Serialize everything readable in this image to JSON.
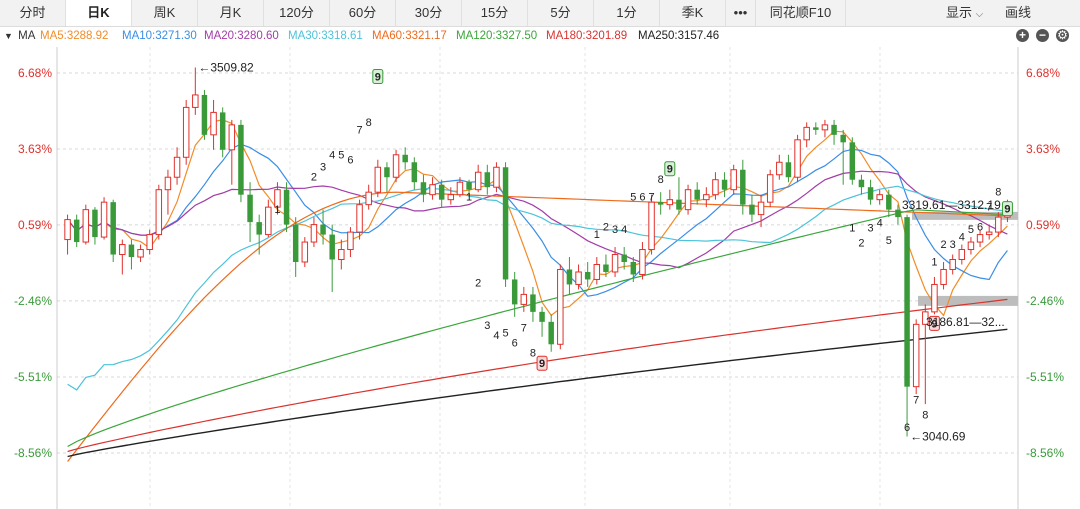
{
  "tabs": [
    {
      "label": "分时",
      "active": false
    },
    {
      "label": "日K",
      "active": true
    },
    {
      "label": "周K",
      "active": false
    },
    {
      "label": "月K",
      "active": false
    },
    {
      "label": "120分",
      "active": false
    },
    {
      "label": "60分",
      "active": false
    },
    {
      "label": "30分",
      "active": false
    },
    {
      "label": "15分",
      "active": false
    },
    {
      "label": "5分",
      "active": false
    },
    {
      "label": "1分",
      "active": false
    },
    {
      "label": "季K",
      "active": false
    },
    {
      "label": "•••",
      "active": false
    },
    {
      "label": "同花顺F10",
      "active": false
    }
  ],
  "toolbar": {
    "display_label": "显示",
    "draw_label": "画线"
  },
  "ma_bar": {
    "toggle": "MA",
    "items": [
      {
        "label": "MA5:3288.92",
        "color": "#f28c28"
      },
      {
        "label": "MA10:3271.30",
        "color": "#3a8ee6"
      },
      {
        "label": "MA20:3280.60",
        "color": "#a23ca8"
      },
      {
        "label": "MA30:3318.61",
        "color": "#4cc3d9"
      },
      {
        "label": "MA60:3321.17",
        "color": "#ee6a1c"
      },
      {
        "label": "MA120:3327.50",
        "color": "#3aa63a"
      },
      {
        "label": "MA180:3201.89",
        "color": "#d9332e"
      },
      {
        "label": "MA250:3157.46",
        "color": "#222222"
      }
    ]
  },
  "colors": {
    "up": "#e0302b",
    "down": "#3a9a3a",
    "grid": "#d8d8d8"
  },
  "chart_data": {
    "type": "candlestick",
    "y_axis_percent_ticks": [
      "6.68%",
      "3.63%",
      "0.59%",
      "-2.46%",
      "-5.51%",
      "-8.56%"
    ],
    "y_pct_range": [
      -9.4,
      8.0
    ],
    "annotations": {
      "high": "←3509.82",
      "low": "←3040.69",
      "resistance": "3319.61—3312.19",
      "support": "3186.81—32..."
    },
    "count_labels": [
      {
        "i": 23,
        "v": 0.9,
        "t": "1",
        "pos": "above"
      },
      {
        "i": 27,
        "v": 2.2,
        "t": "2",
        "pos": "above"
      },
      {
        "i": 28,
        "v": 2.6,
        "t": "3",
        "pos": "above"
      },
      {
        "i": 29,
        "v": 3.1,
        "t": "4",
        "pos": "above"
      },
      {
        "i": 30,
        "v": 3.1,
        "t": "5",
        "pos": "above"
      },
      {
        "i": 31,
        "v": 2.9,
        "t": "6",
        "pos": "above"
      },
      {
        "i": 32,
        "v": 4.1,
        "t": "7",
        "pos": "above"
      },
      {
        "i": 33,
        "v": 4.4,
        "t": "8",
        "pos": "above"
      },
      {
        "i": 44,
        "v": 1.4,
        "t": "1",
        "pos": "above"
      },
      {
        "i": 45,
        "v": -1.4,
        "t": "2",
        "pos": "below"
      },
      {
        "i": 46,
        "v": -3.1,
        "t": "3",
        "pos": "below"
      },
      {
        "i": 47,
        "v": -3.5,
        "t": "4",
        "pos": "below"
      },
      {
        "i": 48,
        "v": -3.4,
        "t": "5",
        "pos": "below"
      },
      {
        "i": 49,
        "v": -3.8,
        "t": "6",
        "pos": "below"
      },
      {
        "i": 50,
        "v": -3.2,
        "t": "7",
        "pos": "below"
      },
      {
        "i": 51,
        "v": -4.2,
        "t": "8",
        "pos": "below"
      },
      {
        "i": 58,
        "v": -0.1,
        "t": "1",
        "pos": "above"
      },
      {
        "i": 59,
        "v": 0.2,
        "t": "2",
        "pos": "above"
      },
      {
        "i": 60,
        "v": 0.1,
        "t": "3",
        "pos": "above"
      },
      {
        "i": 61,
        "v": 0.1,
        "t": "4",
        "pos": "above"
      },
      {
        "i": 62,
        "v": 1.4,
        "t": "5",
        "pos": "above"
      },
      {
        "i": 63,
        "v": 1.4,
        "t": "6",
        "pos": "above"
      },
      {
        "i": 64,
        "v": 1.4,
        "t": "7",
        "pos": "above"
      },
      {
        "i": 65,
        "v": 2.1,
        "t": "8",
        "pos": "above"
      },
      {
        "i": 86,
        "v": 0.8,
        "t": "1",
        "pos": "below"
      },
      {
        "i": 87,
        "v": 0.2,
        "t": "2",
        "pos": "below"
      },
      {
        "i": 88,
        "v": 0.8,
        "t": "3",
        "pos": "below"
      },
      {
        "i": 89,
        "v": 1.0,
        "t": "4",
        "pos": "below"
      },
      {
        "i": 90,
        "v": 0.3,
        "t": "5",
        "pos": "below"
      },
      {
        "i": 92,
        "v": -7.2,
        "t": "6",
        "pos": "below"
      },
      {
        "i": 93,
        "v": -6.1,
        "t": "7",
        "pos": "below"
      },
      {
        "i": 94,
        "v": -6.7,
        "t": "8",
        "pos": "below"
      },
      {
        "i": 95,
        "v": -1.2,
        "t": "1",
        "pos": "above"
      },
      {
        "i": 96,
        "v": -0.5,
        "t": "2",
        "pos": "above"
      },
      {
        "i": 97,
        "v": -0.5,
        "t": "3",
        "pos": "above"
      },
      {
        "i": 98,
        "v": -0.2,
        "t": "4",
        "pos": "above"
      },
      {
        "i": 99,
        "v": 0.1,
        "t": "5",
        "pos": "above"
      },
      {
        "i": 100,
        "v": 0.2,
        "t": "6",
        "pos": "above"
      },
      {
        "i": 101,
        "v": 1.0,
        "t": "7",
        "pos": "above"
      },
      {
        "i": 102,
        "v": 1.6,
        "t": "8",
        "pos": "above"
      }
    ],
    "nine_marks": [
      {
        "i": 34,
        "v": 6.5,
        "t": "9",
        "kind": "top"
      },
      {
        "i": 52,
        "v": -5.0,
        "t": "9",
        "kind": "bottom"
      },
      {
        "i": 66,
        "v": 2.8,
        "t": "9",
        "kind": "top"
      },
      {
        "i": 95,
        "v": -3.4,
        "t": "9",
        "kind": "bottom"
      },
      {
        "i": 103,
        "v": 1.2,
        "t": "9",
        "kind": "top"
      }
    ],
    "candles": [
      [
        0.0,
        0.8,
        1.0,
        -0.6
      ],
      [
        0.8,
        -0.1,
        1.0,
        -0.3
      ],
      [
        -0.1,
        1.2,
        1.4,
        -0.2
      ],
      [
        1.2,
        0.1,
        1.3,
        -0.2
      ],
      [
        0.1,
        1.5,
        1.7,
        0.0
      ],
      [
        1.5,
        -0.6,
        1.6,
        -0.9
      ],
      [
        -0.6,
        -0.2,
        0.0,
        -1.4
      ],
      [
        -0.2,
        -0.7,
        0.0,
        -1.2
      ],
      [
        -0.7,
        -0.4,
        -0.2,
        -0.9
      ],
      [
        -0.4,
        0.2,
        0.4,
        -0.6
      ],
      [
        0.2,
        2.0,
        2.2,
        0.0
      ],
      [
        2.0,
        2.5,
        2.8,
        1.0
      ],
      [
        2.5,
        3.3,
        3.7,
        2.2
      ],
      [
        3.3,
        5.3,
        5.6,
        3.0
      ],
      [
        5.3,
        5.8,
        6.9,
        5.0
      ],
      [
        5.8,
        4.2,
        6.0,
        4.0
      ],
      [
        4.2,
        5.1,
        5.6,
        3.6
      ],
      [
        5.1,
        3.6,
        5.3,
        3.3
      ],
      [
        3.6,
        4.6,
        4.8,
        2.2
      ],
      [
        4.6,
        1.8,
        4.8,
        1.5
      ],
      [
        1.8,
        0.7,
        2.3,
        -0.1
      ],
      [
        0.7,
        0.2,
        1.0,
        -0.6
      ],
      [
        0.2,
        1.3,
        1.6,
        0.1
      ],
      [
        1.3,
        2.0,
        2.3,
        1.0
      ],
      [
        2.0,
        0.6,
        2.3,
        0.3
      ],
      [
        0.6,
        -0.9,
        0.9,
        -1.5
      ],
      [
        -0.9,
        -0.1,
        0.1,
        -1.1
      ],
      [
        -0.1,
        0.6,
        0.9,
        -0.3
      ],
      [
        0.6,
        0.2,
        1.2,
        -0.2
      ],
      [
        0.2,
        -0.8,
        0.6,
        -2.1
      ],
      [
        -0.8,
        -0.4,
        0.0,
        -1.2
      ],
      [
        -0.4,
        0.3,
        0.5,
        -0.7
      ],
      [
        0.3,
        1.4,
        1.6,
        0.0
      ],
      [
        1.4,
        1.9,
        2.2,
        1.2
      ],
      [
        1.9,
        2.9,
        3.2,
        1.7
      ],
      [
        2.9,
        2.5,
        3.1,
        1.9
      ],
      [
        2.5,
        3.4,
        3.6,
        2.3
      ],
      [
        3.4,
        3.1,
        3.7,
        2.8
      ],
      [
        3.1,
        2.3,
        3.3,
        2.0
      ],
      [
        2.3,
        1.8,
        2.6,
        1.5
      ],
      [
        1.8,
        2.2,
        2.5,
        1.6
      ],
      [
        2.2,
        1.6,
        2.4,
        1.3
      ],
      [
        1.6,
        1.8,
        2.1,
        1.4
      ],
      [
        1.8,
        2.3,
        2.5,
        1.7
      ],
      [
        2.3,
        2.0,
        2.4,
        1.8
      ],
      [
        2.0,
        2.7,
        3.0,
        1.9
      ],
      [
        2.7,
        2.1,
        3.0,
        1.8
      ],
      [
        2.1,
        2.9,
        3.1,
        1.9
      ],
      [
        2.9,
        -1.6,
        3.1,
        -1.9
      ],
      [
        -1.6,
        -2.6,
        -1.3,
        -3.1
      ],
      [
        -2.6,
        -2.2,
        -1.9,
        -2.9
      ],
      [
        -2.2,
        -2.9,
        -1.9,
        -3.3
      ],
      [
        -2.9,
        -3.3,
        -2.7,
        -3.9
      ],
      [
        -3.3,
        -4.2,
        -3.0,
        -4.5
      ],
      [
        -4.2,
        -1.2,
        -1.0,
        -4.4
      ],
      [
        -1.2,
        -1.8,
        -0.7,
        -2.2
      ],
      [
        -1.8,
        -1.3,
        -1.0,
        -2.0
      ],
      [
        -1.3,
        -1.6,
        -0.9,
        -1.9
      ],
      [
        -1.6,
        -1.0,
        -0.7,
        -1.8
      ],
      [
        -1.0,
        -1.3,
        -0.6,
        -1.5
      ],
      [
        -1.3,
        -0.6,
        -0.3,
        -1.5
      ],
      [
        -0.6,
        -0.9,
        -0.3,
        -1.2
      ],
      [
        -0.9,
        -1.4,
        -0.7,
        -1.7
      ],
      [
        -1.4,
        -0.4,
        -0.1,
        -1.6
      ],
      [
        -0.4,
        1.5,
        1.8,
        -0.6
      ],
      [
        1.5,
        1.4,
        1.9,
        1.0
      ],
      [
        1.4,
        1.6,
        2.0,
        1.2
      ],
      [
        1.6,
        1.2,
        2.5,
        1.0
      ],
      [
        1.2,
        2.0,
        2.2,
        1.0
      ],
      [
        2.0,
        1.6,
        2.3,
        1.4
      ],
      [
        1.6,
        1.8,
        2.1,
        1.3
      ],
      [
        1.8,
        2.4,
        2.7,
        1.6
      ],
      [
        2.4,
        2.0,
        2.7,
        1.7
      ],
      [
        2.0,
        2.8,
        3.0,
        1.8
      ],
      [
        2.8,
        1.4,
        3.2,
        1.0
      ],
      [
        1.4,
        1.0,
        1.8,
        0.7
      ],
      [
        1.0,
        1.5,
        1.8,
        0.5
      ],
      [
        1.5,
        2.6,
        2.8,
        1.3
      ],
      [
        2.6,
        3.1,
        3.4,
        2.4
      ],
      [
        3.1,
        2.5,
        3.4,
        2.3
      ],
      [
        2.5,
        4.0,
        4.2,
        2.3
      ],
      [
        4.0,
        4.5,
        4.7,
        3.7
      ],
      [
        4.5,
        4.4,
        4.7,
        4.2
      ],
      [
        4.4,
        4.6,
        4.8,
        4.1
      ],
      [
        4.6,
        4.2,
        4.8,
        3.8
      ],
      [
        4.2,
        3.9,
        4.4,
        2.2
      ],
      [
        3.9,
        2.4,
        4.1,
        2.2
      ],
      [
        2.4,
        2.1,
        2.6,
        1.8
      ],
      [
        2.1,
        1.6,
        2.4,
        1.4
      ],
      [
        1.6,
        1.8,
        2.0,
        1.4
      ],
      [
        1.8,
        1.2,
        2.0,
        0.9
      ],
      [
        1.2,
        0.9,
        1.4,
        0.6
      ],
      [
        0.9,
        -5.9,
        1.0,
        -7.9
      ],
      [
        -5.9,
        -3.4,
        -3.2,
        -6.2
      ],
      [
        -3.4,
        -2.9,
        -2.6,
        -6.6
      ],
      [
        -2.9,
        -1.8,
        -1.5,
        -3.0
      ],
      [
        -1.8,
        -1.2,
        -0.9,
        -2.0
      ],
      [
        -1.2,
        -0.8,
        -0.6,
        -1.4
      ],
      [
        -0.8,
        -0.4,
        -0.2,
        -1.0
      ],
      [
        -0.4,
        -0.1,
        0.1,
        -0.6
      ],
      [
        -0.1,
        0.2,
        0.4,
        -0.3
      ],
      [
        0.2,
        0.3,
        0.6,
        0.0
      ],
      [
        0.3,
        0.9,
        1.1,
        0.1
      ],
      [
        0.9,
        1.4,
        1.6,
        0.7
      ]
    ]
  }
}
